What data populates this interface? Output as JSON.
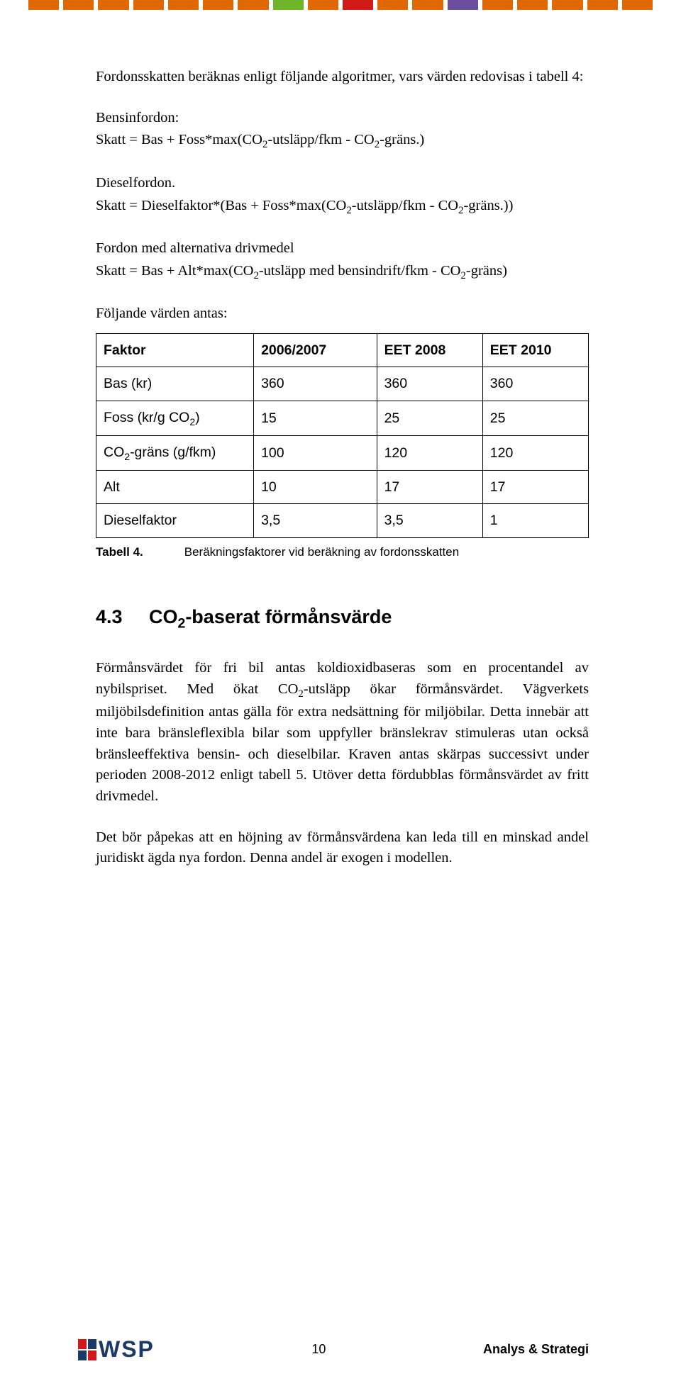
{
  "color_strip": [
    "#e06800",
    "#e06800",
    "#e06800",
    "#e06800",
    "#e06800",
    "#e06800",
    "#e06800",
    "#6eb52a",
    "#e06800",
    "#d21a1a",
    "#e06800",
    "#e06800",
    "#6a4ea0",
    "#e06800",
    "#e06800",
    "#e06800",
    "#e06800",
    "#e06800"
  ],
  "p1": "Fordonsskatten beräknas enligt följande algoritmer, vars värden redovisas i tabell 4:",
  "p2_label": "Bensinfordon:",
  "p2_formula_pre": "Skatt = Bas + Foss*max(CO",
  "p2_formula_mid": "-utsläpp/fkm - CO",
  "p2_formula_post": "-gräns.)",
  "p3_label": "Dieselfordon.",
  "p3_formula_pre": "Skatt = Dieselfaktor*(Bas + Foss*max(CO",
  "p3_formula_mid": "-utsläpp/fkm - CO",
  "p3_formula_post": "-gräns.))",
  "p4_label": "Fordon med alternativa drivmedel",
  "p4_formula_pre": "Skatt = Bas + Alt*max(CO",
  "p4_formula_mid": "-utsläpp med bensindrift/fkm - CO",
  "p4_formula_post": "-gräns)",
  "p5": "Följande värden antas:",
  "table": {
    "headers": [
      "Faktor",
      "2006/2007",
      "EET 2008",
      "EET 2010"
    ],
    "rows": [
      [
        "Bas (kr)",
        "360",
        "360",
        "360"
      ],
      [
        "Foss (kr/g CO₂)",
        "15",
        "25",
        "25"
      ],
      [
        "CO₂-gräns (g/fkm)",
        "100",
        "120",
        "120"
      ],
      [
        "Alt",
        "10",
        "17",
        "17"
      ],
      [
        "Dieselfaktor",
        "3,5",
        "3,5",
        "1"
      ]
    ]
  },
  "caption_label": "Tabell 4.",
  "caption_text": "Beräkningsfaktorer vid beräkning av fordonsskatten",
  "h2_num": "4.3",
  "h2_text_pre": "CO",
  "h2_text_post": "-baserat förmånsvärde",
  "p6": "Förmånsvärdet för fri bil antas koldioxidbaseras som en procentandel av nybilspriset. Med ökat CO₂-utsläpp ökar förmånsvärdet. Vägverkets miljöbilsdefinition antas gälla för extra nedsättning för miljöbilar. Detta innebär att inte bara bränsleflexibla bilar som uppfyller bränslekrav stimuleras utan också bränsleeffektiva bensin- och dieselbilar. Kraven antas skärpas successivt under perioden 2008-2012 enligt tabell 5. Utöver detta fördubblas förmånsvärdet av fritt drivmedel.",
  "p7": "Det bör påpekas att en höjning av förmånsvärdena kan leda till en minskad andel juridiskt ägda nya fordon. Denna andel är exogen i modellen.",
  "footer": {
    "page": "10",
    "right": "Analys & Strategi",
    "logo_text": "WSP"
  }
}
